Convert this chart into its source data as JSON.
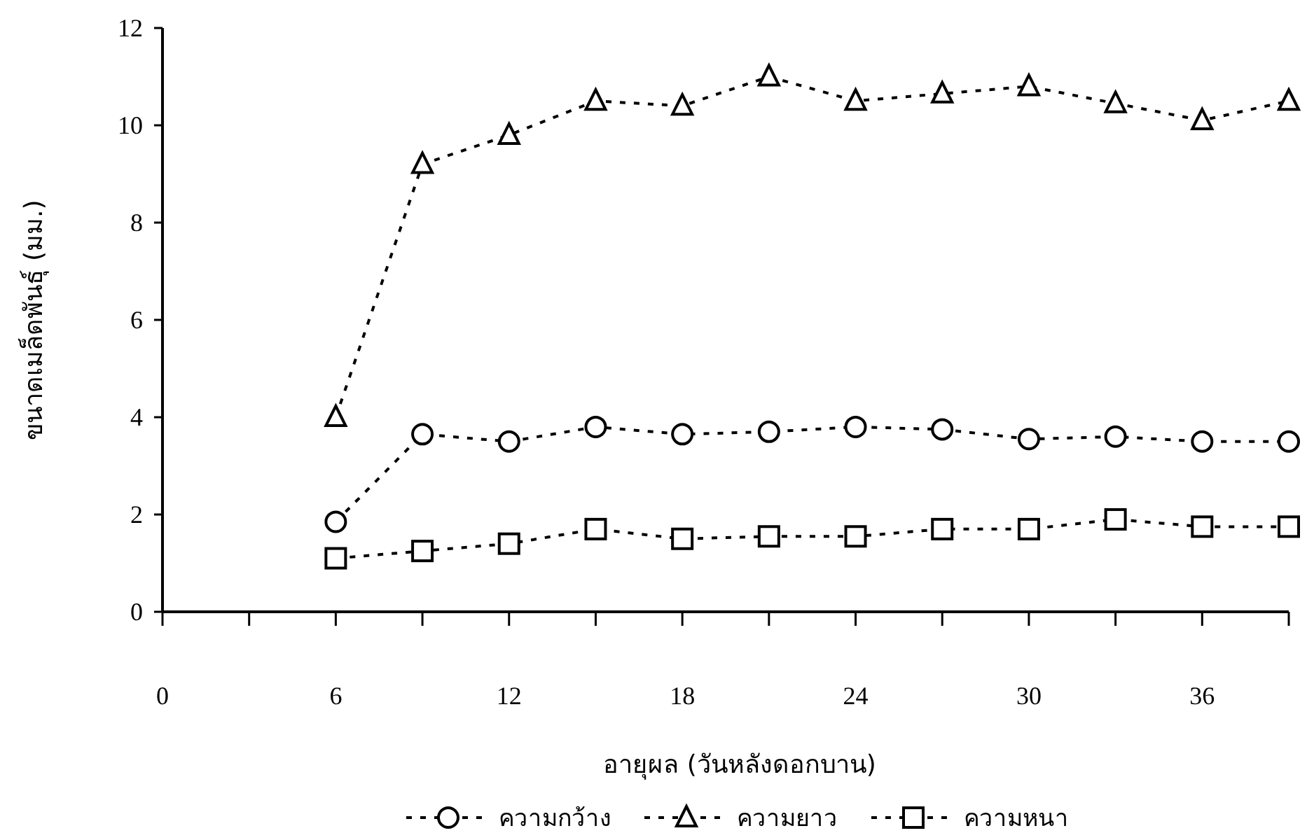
{
  "chart_data": {
    "type": "line",
    "xlabel": "อายุผล (วันหลังดอกบาน)",
    "ylabel": "ขนาดเมล็ดพันธุ์ (มม.)",
    "x": [
      6,
      9,
      12,
      15,
      18,
      21,
      24,
      27,
      30,
      33,
      36,
      39
    ],
    "series": [
      {
        "name": "ความกว้าง",
        "color": "#000000",
        "marker": "circle",
        "values": [
          1.85,
          3.65,
          3.5,
          3.8,
          3.65,
          3.7,
          3.8,
          3.75,
          3.55,
          3.6,
          3.5,
          3.5
        ]
      },
      {
        "name": "ความยาว",
        "color": "#000000",
        "marker": "triangle",
        "values": [
          4.0,
          9.2,
          9.8,
          10.5,
          10.4,
          11.0,
          10.5,
          10.65,
          10.8,
          10.45,
          10.1,
          10.5
        ]
      },
      {
        "name": "ความหนา",
        "color": "#000000",
        "marker": "square",
        "values": [
          1.1,
          1.25,
          1.4,
          1.7,
          1.5,
          1.55,
          1.55,
          1.7,
          1.7,
          1.9,
          1.75,
          1.75
        ]
      }
    ],
    "xlim": [
      0,
      39
    ],
    "ylim": [
      0,
      12
    ],
    "xticks": [
      0,
      {
        "value": 3,
        "label": null
      },
      6,
      {
        "value": 9,
        "label": null
      },
      12,
      {
        "value": 15,
        "label": null
      },
      18,
      {
        "value": 21,
        "label": null
      },
      24,
      {
        "value": 27,
        "label": null
      },
      30,
      {
        "value": 33,
        "label": null
      },
      36,
      {
        "value": 39,
        "label": null
      }
    ],
    "yticks": [
      0,
      2,
      4,
      6,
      8,
      10,
      12
    ],
    "line_style": "dotted",
    "legend": "bottom",
    "grid": false
  }
}
